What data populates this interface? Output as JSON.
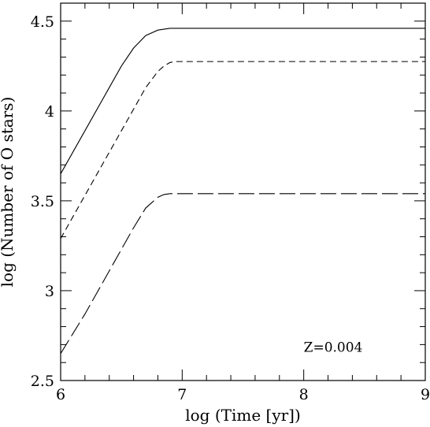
{
  "chart_data": {
    "type": "line",
    "xlabel": "log (Time [yr])",
    "ylabel": "log (Number of O stars)",
    "xlim": [
      6,
      9
    ],
    "ylim": [
      2.5,
      4.6
    ],
    "x_ticks": [
      "6",
      "7",
      "8",
      "9"
    ],
    "y_ticks": [
      "2.5",
      "3",
      "3.5",
      "4",
      "4.5"
    ],
    "annotation": "Z=0.004",
    "grid": false,
    "legend": "none",
    "series": [
      {
        "style": "solid",
        "x": [
          6.0,
          6.1,
          6.2,
          6.3,
          6.4,
          6.5,
          6.6,
          6.7,
          6.8,
          6.85,
          6.9,
          6.95,
          7.0,
          8.0,
          9.0
        ],
        "y": [
          3.65,
          3.77,
          3.89,
          4.01,
          4.13,
          4.25,
          4.35,
          4.42,
          4.45,
          4.455,
          4.46,
          4.46,
          4.46,
          4.46,
          4.46
        ]
      },
      {
        "style": "short-dash",
        "x": [
          6.0,
          6.1,
          6.2,
          6.3,
          6.4,
          6.5,
          6.6,
          6.7,
          6.8,
          6.85,
          6.9,
          6.95,
          7.0,
          8.0,
          9.0
        ],
        "y": [
          3.29,
          3.41,
          3.53,
          3.65,
          3.77,
          3.89,
          4.01,
          4.13,
          4.22,
          4.25,
          4.27,
          4.275,
          4.275,
          4.275,
          4.275
        ]
      },
      {
        "style": "long-dash",
        "x": [
          6.0,
          6.1,
          6.2,
          6.3,
          6.4,
          6.5,
          6.6,
          6.7,
          6.8,
          6.85,
          6.9,
          6.95,
          7.0,
          8.0,
          9.0
        ],
        "y": [
          2.65,
          2.76,
          2.87,
          2.99,
          3.11,
          3.23,
          3.35,
          3.46,
          3.52,
          3.535,
          3.54,
          3.54,
          3.54,
          3.54,
          3.54
        ]
      }
    ]
  }
}
